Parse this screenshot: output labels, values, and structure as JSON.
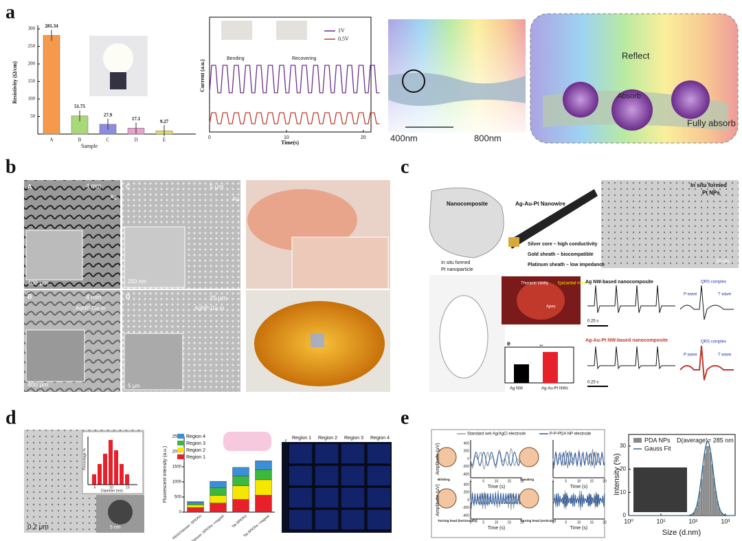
{
  "panel_labels": [
    "a",
    "b",
    "c",
    "d",
    "e"
  ],
  "a": {
    "bar": {
      "y_label": "Resistivity (Ω/cm)",
      "x_label": "Sample",
      "categories": [
        "A",
        "B",
        "C",
        "D",
        "E"
      ],
      "values": [
        281.34,
        51.75,
        27.9,
        17.1,
        9.27
      ],
      "colors": [
        "#f59a4c",
        "#a8d878",
        "#8c8ce0",
        "#e8a2cc",
        "#e6e060"
      ],
      "ylim": [
        0,
        300
      ],
      "yticks": [
        50,
        100,
        150,
        200,
        250,
        300
      ]
    },
    "current": {
      "y_label": "Current (a.u.)",
      "x_label": "Time(s)",
      "xlim": [
        0,
        21
      ],
      "xticks": [
        0,
        10,
        20
      ],
      "legend": [
        "1V",
        "0.5V"
      ],
      "legend_colors": [
        "#6a2c8a",
        "#c0392b"
      ],
      "annotations": [
        "Bending",
        "Recovering"
      ]
    },
    "absorb": {
      "labels": [
        "400nm",
        "800nm",
        "Reflect",
        "Absorb",
        "Fully absorb"
      ]
    }
  },
  "b": {
    "labels": [
      "A",
      "4 mm",
      "Ag",
      "400 μm",
      "C",
      "5 μm",
      "Ag",
      "250 nm",
      "B",
      "4 mm",
      "AgNP-Ga-In",
      "400 μm",
      "D",
      "25 μm",
      "AgNP-Ga-In",
      "5 μm"
    ]
  },
  "c": {
    "labels": [
      "Nanocomposite",
      "Ag-Au-Pt Nanowire",
      "In situ formed",
      "Pt nanoparticle",
      "Silver core – high conductivity",
      "Gold sheath – biocompatible",
      "Platinum sheath – low impedance",
      "In situ formed",
      "Pt NPs",
      "20 nm",
      "Thoracic cavity",
      "Epicardial mesh",
      "Apex",
      "Ag NW-based nanocomposite",
      "0.25 s",
      "QRS complex",
      "P wave",
      "T wave",
      "e",
      "**",
      "Ag NW",
      "Ag-Au-Pt NWs",
      "Ag-Au-Pt NW-based nanocomposite",
      "0.25 s",
      "QRS complex",
      "P wave",
      "T wave"
    ]
  },
  "d": {
    "tem": [
      "0.2 μm",
      "5 nm"
    ],
    "hist": {
      "x_label": "Diameter (nm)",
      "y_label": "Percentage %",
      "xticks": [
        "5",
        "10",
        "15"
      ]
    },
    "stack": {
      "y_label": "Fluorescent intensity (a.u.)",
      "categories": [
        "PEG/Chitosan -SPIONs",
        "PEG/Chitosan -SPIONs +magnet",
        "Tat-SPIONs",
        "Tat-SPIONs +magnet"
      ],
      "ylim": [
        0,
        2500
      ],
      "yticks": [
        0,
        500,
        1000,
        1500,
        2000,
        2500
      ],
      "series": [
        {
          "name": "Region 1",
          "color": "#e8202a",
          "values": [
            150,
            300,
            420,
            560
          ]
        },
        {
          "name": "Region 2",
          "color": "#f6e600",
          "values": [
            90,
            250,
            450,
            510
          ]
        },
        {
          "name": "Region 3",
          "color": "#3cb83c",
          "values": [
            60,
            250,
            320,
            330
          ]
        },
        {
          "name": "Region 4",
          "color": "#3b8fd6",
          "values": [
            50,
            220,
            290,
            300
          ]
        }
      ]
    },
    "grid_headers": [
      "Region 1",
      "Region 2",
      "Region 3",
      "Region 4"
    ]
  },
  "e": {
    "legend": [
      "Standard wet Ag/AgCl electrode",
      "P-P-PDA NP electrode"
    ],
    "tasks": [
      "Blinking",
      "Speaking",
      "Turning head (horizontally)",
      "Turning head (vertically)"
    ],
    "y_label": "Amplitude (μV)",
    "x_label": "Time (s)",
    "yticks": [
      "400",
      "200",
      "0",
      "-200",
      "-400"
    ],
    "xticks": [
      "0",
      "5",
      "10",
      "15",
      "20"
    ],
    "hist": {
      "legend": [
        "PDA NPs",
        "Gauss Fit"
      ],
      "annotation": "D(average)= 285 nm",
      "y_label": "Intensity (%)",
      "x_label": "Size (d.nm)",
      "ylim": [
        0,
        35
      ],
      "yticks": [
        0,
        10,
        20,
        30
      ],
      "xlim": [
        1,
        2000
      ],
      "log_x": true,
      "xticks": [
        {
          "value": 1,
          "label": "10⁰"
        },
        {
          "value": 10,
          "label": "10¹"
        },
        {
          "value": 100,
          "label": "10²"
        },
        {
          "value": 1000,
          "label": "10³"
        }
      ]
    }
  }
}
